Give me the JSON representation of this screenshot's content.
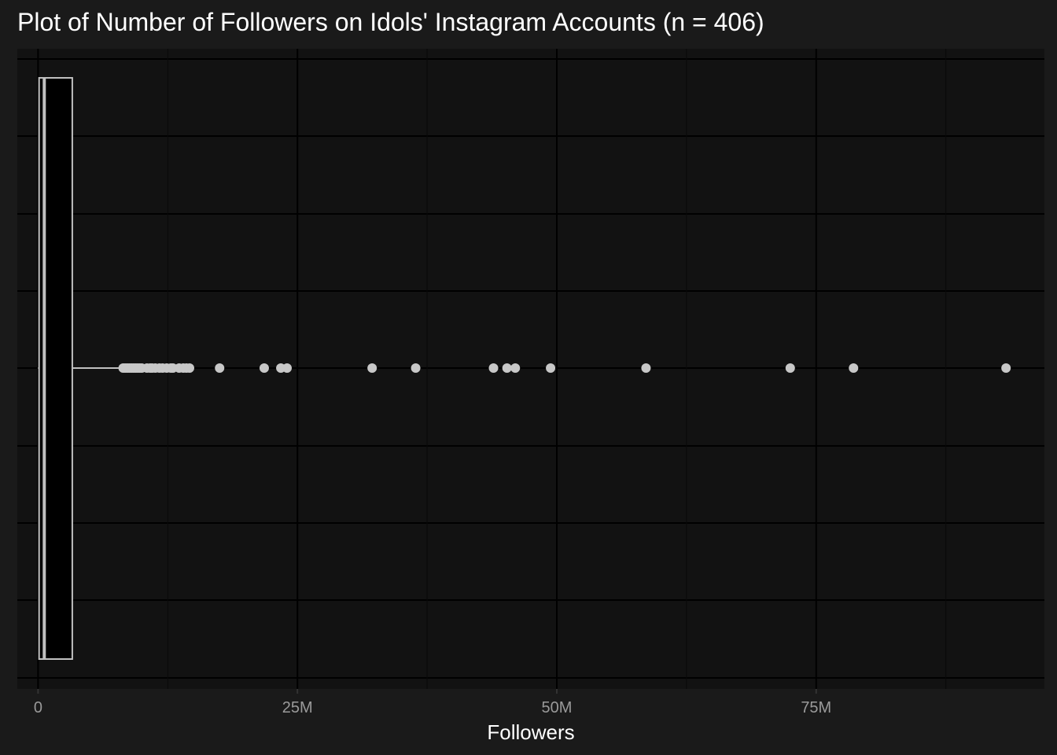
{
  "chart_data": {
    "type": "boxplot",
    "title": "Plot of Number of Followers on Idols' Instagram Accounts (n = 406)",
    "xlabel": "Followers",
    "ylabel": "",
    "orientation": "horizontal",
    "xlim": [
      -2000000,
      97000000
    ],
    "x_ticks": [
      {
        "value": 0,
        "label": "0"
      },
      {
        "value": 25000000,
        "label": "25M"
      },
      {
        "value": 50000000,
        "label": "50M"
      },
      {
        "value": 75000000,
        "label": "75M"
      }
    ],
    "x_minor_ticks": [
      12500000,
      37500000,
      62500000,
      87500000
    ],
    "box": {
      "lower_whisker": 0,
      "q1": 100000,
      "median": 600000,
      "q3": 3300000,
      "upper_whisker": 8000000
    },
    "outliers": [
      8200000,
      8400000,
      8600000,
      8800000,
      9000000,
      9200000,
      9400000,
      9600000,
      9800000,
      10000000,
      10500000,
      10800000,
      11000000,
      11300000,
      11700000,
      12000000,
      12400000,
      12800000,
      13000000,
      13600000,
      14000000,
      14300000,
      14600000,
      17500000,
      21800000,
      23400000,
      24000000,
      32200000,
      36400000,
      43900000,
      45200000,
      46000000,
      49400000,
      58600000,
      72500000,
      78600000,
      93300000
    ],
    "grid": true,
    "legend": "none",
    "colors": {
      "background": "#1a1a1a",
      "panel": "#121212",
      "grid_major": "#000000",
      "grid_minor": "#080808",
      "box_fill": "#000000",
      "box_outline": "#c0c0c0",
      "outlier": "#c8c8c8",
      "whisker": "#c0c0c0",
      "text": "#ffffff",
      "tick_text": "#9a9a9a"
    }
  }
}
